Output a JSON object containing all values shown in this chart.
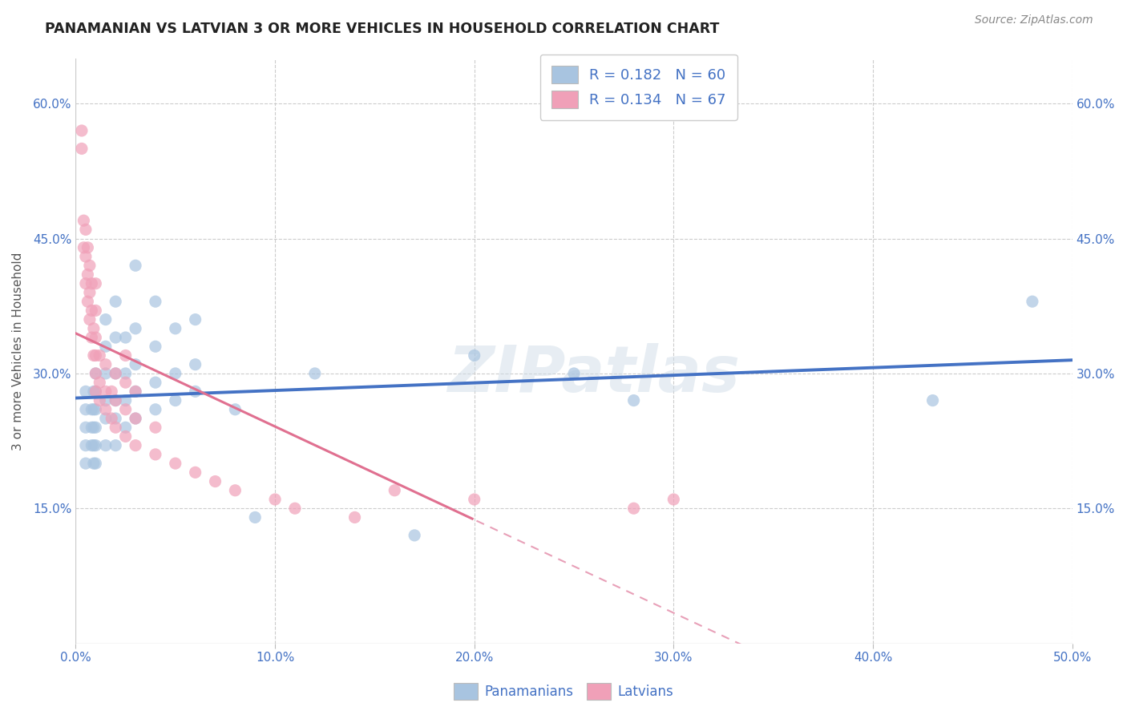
{
  "title": "PANAMANIAN VS LATVIAN 3 OR MORE VEHICLES IN HOUSEHOLD CORRELATION CHART",
  "source": "Source: ZipAtlas.com",
  "ylabel": "3 or more Vehicles in Household",
  "xlim": [
    0.0,
    0.5
  ],
  "ylim": [
    0.0,
    0.65
  ],
  "xtick_labels": [
    "0.0%",
    "10.0%",
    "20.0%",
    "30.0%",
    "40.0%",
    "50.0%"
  ],
  "xtick_vals": [
    0.0,
    0.1,
    0.2,
    0.3,
    0.4,
    0.5
  ],
  "ytick_labels": [
    "15.0%",
    "30.0%",
    "45.0%",
    "60.0%"
  ],
  "ytick_vals": [
    0.15,
    0.3,
    0.45,
    0.6
  ],
  "watermark": "ZIPatlas",
  "legend_pan": "R = 0.182   N = 60",
  "legend_lat": "R = 0.134   N = 67",
  "legend_label1": "Panamanians",
  "legend_label2": "Latvians",
  "color_blue": "#a8c4e0",
  "color_pink": "#f0a0b8",
  "color_blue_line": "#4472c4",
  "color_pink_line": "#e07090",
  "color_pink_dash": "#e8a0b8",
  "color_title": "#222222",
  "color_source": "#666666",
  "color_axis": "#4472c4",
  "pan_x": [
    0.005,
    0.005,
    0.005,
    0.005,
    0.005,
    0.008,
    0.008,
    0.008,
    0.009,
    0.009,
    0.009,
    0.009,
    0.009,
    0.01,
    0.01,
    0.01,
    0.01,
    0.01,
    0.01,
    0.015,
    0.015,
    0.015,
    0.015,
    0.015,
    0.015,
    0.02,
    0.02,
    0.02,
    0.02,
    0.02,
    0.02,
    0.025,
    0.025,
    0.025,
    0.025,
    0.03,
    0.03,
    0.03,
    0.03,
    0.03,
    0.04,
    0.04,
    0.04,
    0.04,
    0.05,
    0.05,
    0.05,
    0.06,
    0.06,
    0.06,
    0.08,
    0.09,
    0.12,
    0.17,
    0.2,
    0.25,
    0.28,
    0.43,
    0.48
  ],
  "pan_y": [
    0.2,
    0.22,
    0.24,
    0.26,
    0.28,
    0.22,
    0.24,
    0.26,
    0.2,
    0.22,
    0.24,
    0.26,
    0.28,
    0.2,
    0.22,
    0.24,
    0.26,
    0.28,
    0.3,
    0.22,
    0.25,
    0.27,
    0.3,
    0.33,
    0.36,
    0.22,
    0.25,
    0.27,
    0.3,
    0.34,
    0.38,
    0.24,
    0.27,
    0.3,
    0.34,
    0.25,
    0.28,
    0.31,
    0.35,
    0.42,
    0.26,
    0.29,
    0.33,
    0.38,
    0.27,
    0.3,
    0.35,
    0.28,
    0.31,
    0.36,
    0.26,
    0.14,
    0.3,
    0.12,
    0.32,
    0.3,
    0.27,
    0.27,
    0.38
  ],
  "lat_x": [
    0.003,
    0.003,
    0.004,
    0.004,
    0.005,
    0.005,
    0.005,
    0.006,
    0.006,
    0.006,
    0.007,
    0.007,
    0.007,
    0.008,
    0.008,
    0.008,
    0.009,
    0.009,
    0.01,
    0.01,
    0.01,
    0.01,
    0.01,
    0.01,
    0.012,
    0.012,
    0.012,
    0.015,
    0.015,
    0.015,
    0.018,
    0.018,
    0.02,
    0.02,
    0.02,
    0.025,
    0.025,
    0.025,
    0.025,
    0.03,
    0.03,
    0.03,
    0.04,
    0.04,
    0.05,
    0.06,
    0.07,
    0.08,
    0.1,
    0.11,
    0.14,
    0.16,
    0.2,
    0.28,
    0.3
  ],
  "lat_y": [
    0.55,
    0.57,
    0.44,
    0.47,
    0.4,
    0.43,
    0.46,
    0.38,
    0.41,
    0.44,
    0.36,
    0.39,
    0.42,
    0.34,
    0.37,
    0.4,
    0.32,
    0.35,
    0.28,
    0.3,
    0.32,
    0.34,
    0.37,
    0.4,
    0.27,
    0.29,
    0.32,
    0.26,
    0.28,
    0.31,
    0.25,
    0.28,
    0.24,
    0.27,
    0.3,
    0.23,
    0.26,
    0.29,
    0.32,
    0.22,
    0.25,
    0.28,
    0.21,
    0.24,
    0.2,
    0.19,
    0.18,
    0.17,
    0.16,
    0.15,
    0.14,
    0.17,
    0.16,
    0.15,
    0.16
  ]
}
